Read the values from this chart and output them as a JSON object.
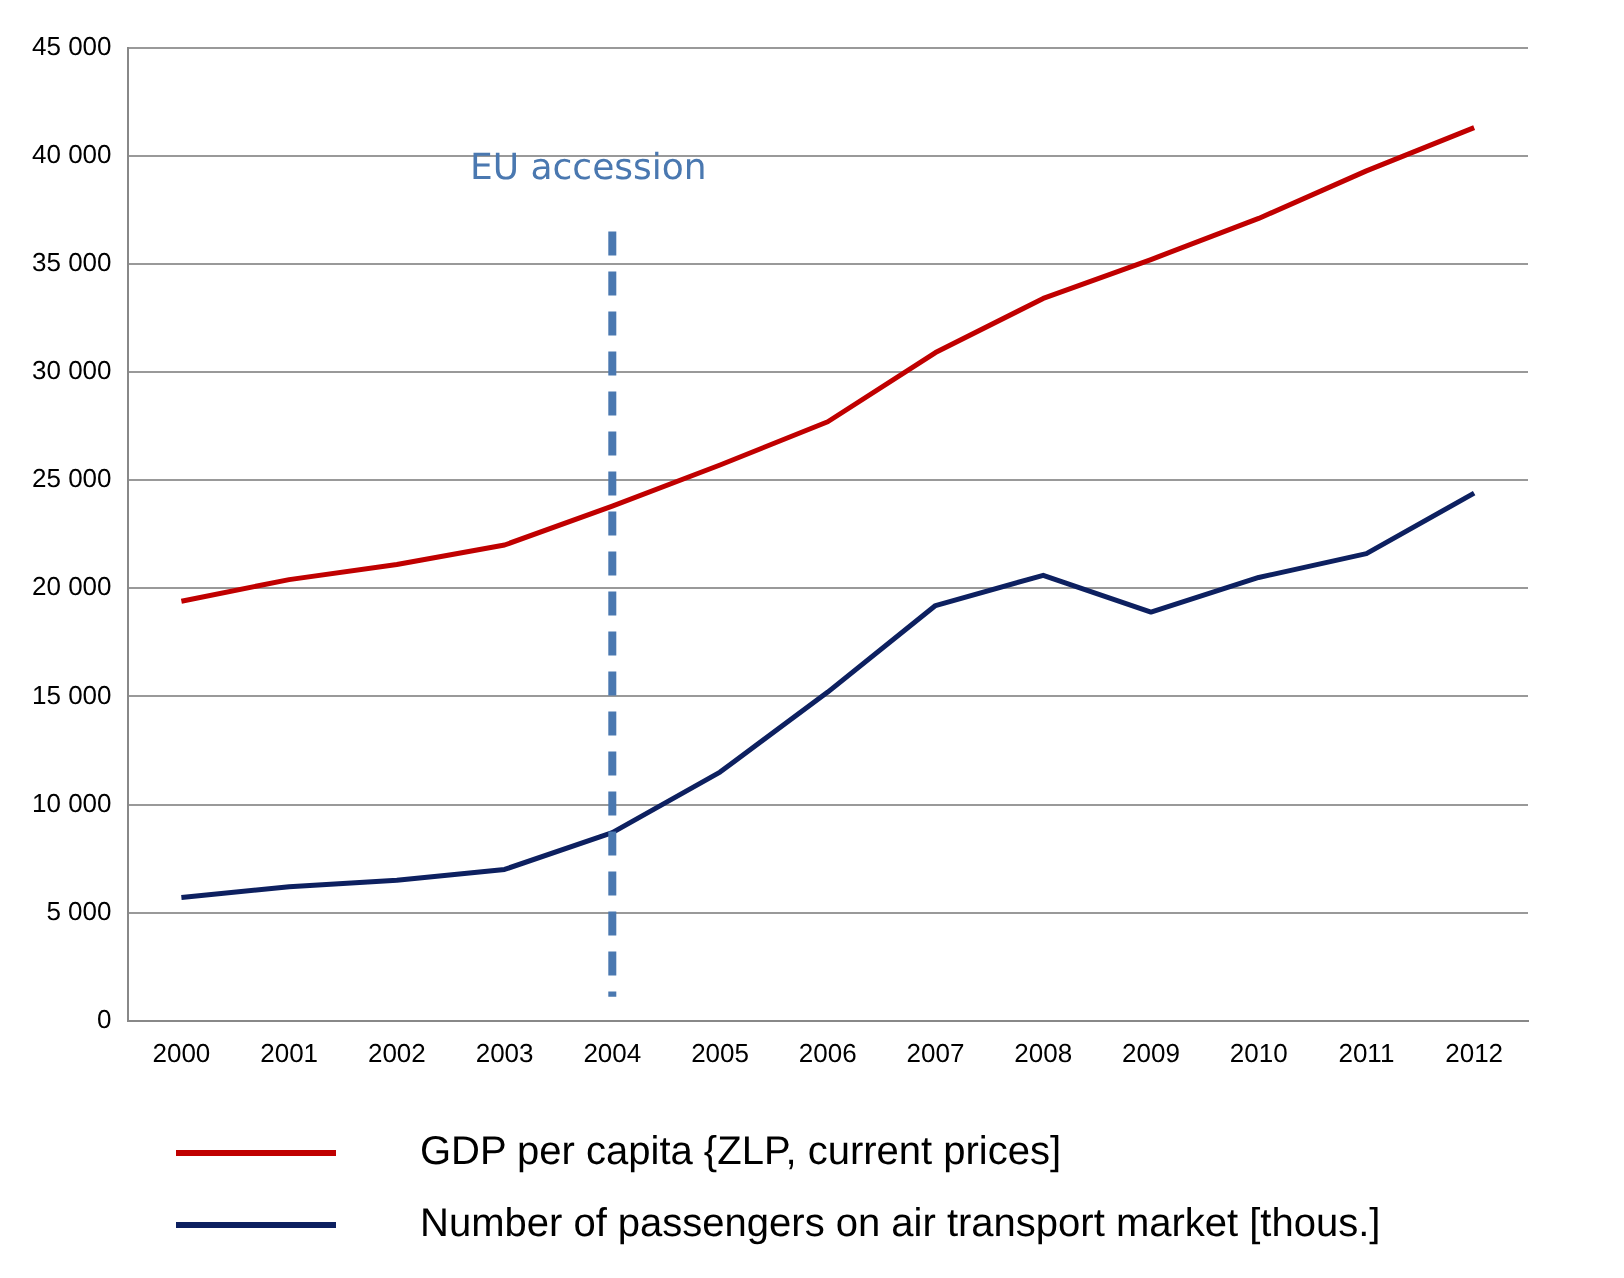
{
  "chart_data": {
    "type": "line",
    "categories": [
      "2000",
      "2001",
      "2002",
      "2003",
      "2004",
      "2005",
      "2006",
      "2007",
      "2008",
      "2009",
      "2010",
      "2011",
      "2012"
    ],
    "series": [
      {
        "name": "GDP per capita {ZLP,  current prices]",
        "color": "#c00000",
        "values": [
          19400,
          20400,
          21100,
          22000,
          23800,
          25700,
          27700,
          30900,
          33400,
          35200,
          37100,
          39300,
          41300
        ]
      },
      {
        "name": "Number  of passengers on air transport market  [thous.]",
        "color": "#0d2060",
        "values": [
          5700,
          6200,
          6500,
          7000,
          8700,
          11500,
          15200,
          19200,
          20600,
          18900,
          20500,
          21600,
          24400
        ]
      }
    ],
    "ylim": [
      0,
      45000
    ],
    "yticks": [
      0,
      {
        "value": 5000,
        "label": "5 000"
      },
      {
        "value": 10000,
        "label": "10 000"
      },
      {
        "value": 15000,
        "label": "15 000"
      },
      {
        "value": 20000,
        "label": "20 000"
      },
      {
        "value": 25000,
        "label": "25 000"
      },
      {
        "value": 30000,
        "label": "30 000"
      },
      {
        "value": 35000,
        "label": "35 000"
      },
      {
        "value": 40000,
        "label": "40 000"
      },
      {
        "value": 45000,
        "label": "45 000"
      }
    ],
    "grid": "y",
    "legend": "bottom",
    "marker": "none",
    "line_style": "solid",
    "ref_lines": [
      {
        "axis": "x",
        "value": "2004",
        "label": "EU accession",
        "color": "#4a78b0",
        "line_style": "dashed"
      }
    ]
  }
}
